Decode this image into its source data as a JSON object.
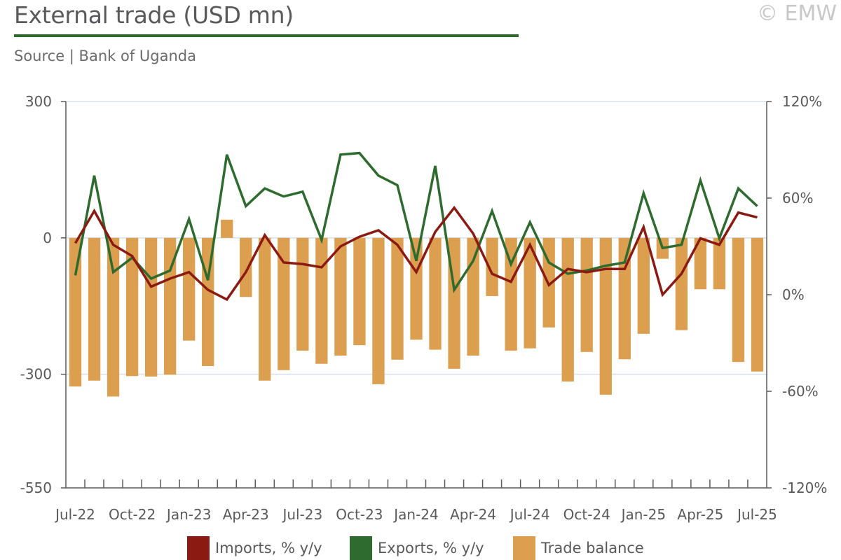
{
  "header": {
    "title": "External trade (USD mn)",
    "copyright": "© EMW",
    "source": "Source | Bank of Uganda"
  },
  "colors": {
    "imports": "#8b1a12",
    "exports": "#2e6b2e",
    "trade_balance": "#dc9e4f",
    "axis": "#5a5a5a",
    "grid": "#d6e0ec"
  },
  "chart_data": {
    "type": "bar",
    "x": [
      "Jul-22",
      "Aug-22",
      "Sep-22",
      "Oct-22",
      "Nov-22",
      "Dec-22",
      "Jan-23",
      "Feb-23",
      "Mar-23",
      "Apr-23",
      "May-23",
      "Jun-23",
      "Jul-23",
      "Aug-23",
      "Sep-23",
      "Oct-23",
      "Nov-23",
      "Dec-23",
      "Jan-24",
      "Feb-24",
      "Mar-24",
      "Apr-24",
      "May-24",
      "Jun-24",
      "Jul-24",
      "Aug-24",
      "Sep-24",
      "Oct-24",
      "Nov-24",
      "Dec-24",
      "Jan-25",
      "Feb-25",
      "Mar-25",
      "Apr-25",
      "May-25",
      "Jun-25",
      "Jul-25"
    ],
    "x_tick_labels": [
      "Jul-22",
      "Oct-22",
      "Jan-23",
      "Apr-23",
      "Jul-23",
      "Oct-23",
      "Jan-24",
      "Apr-24",
      "Jul-24",
      "Oct-24",
      "Jan-25",
      "Apr-25",
      "Jul-25"
    ],
    "y_left": {
      "lim": [
        -550,
        300
      ],
      "ticks": [
        300,
        0,
        -300,
        -550
      ],
      "tick_labels": [
        "300",
        "0",
        "-300",
        "-550"
      ]
    },
    "y_right": {
      "lim": [
        -120,
        120
      ],
      "ticks": [
        120,
        60,
        0,
        -60,
        -120
      ],
      "tick_labels": [
        "120%",
        "60%",
        "0%",
        "-60%",
        "-120%"
      ]
    },
    "grid": true,
    "legend_position": "bottom",
    "series": [
      {
        "name": "Imports, % y/y",
        "type": "line",
        "axis": "right",
        "values": [
          32,
          52,
          31,
          24,
          5,
          10,
          14,
          3,
          -3,
          14,
          37,
          20,
          19,
          17,
          30,
          36,
          40,
          31,
          14,
          39,
          54,
          38,
          13,
          8,
          31,
          6,
          16,
          14,
          16,
          16,
          42,
          0,
          13,
          35,
          31,
          51,
          48
        ]
      },
      {
        "name": "Exports, % y/y",
        "type": "line",
        "axis": "right",
        "values": [
          12,
          74,
          14,
          23,
          10,
          15,
          47,
          9,
          87,
          55,
          66,
          61,
          64,
          34,
          87,
          88,
          74,
          68,
          21,
          80,
          3,
          21,
          52,
          19,
          45,
          20,
          13,
          15,
          18,
          20,
          63,
          29,
          31,
          71,
          35,
          66,
          55
        ]
      },
      {
        "name": "Trade balance",
        "type": "bar",
        "axis": "left",
        "values": [
          -327,
          -314,
          -349,
          -304,
          -305,
          -301,
          -226,
          -282,
          40,
          -130,
          -314,
          -291,
          -248,
          -277,
          -259,
          -236,
          -322,
          -268,
          -224,
          -246,
          -288,
          -259,
          -128,
          -248,
          -243,
          -197,
          -316,
          -251,
          -345,
          -267,
          -211,
          -46,
          -203,
          -113,
          -113,
          -273,
          -294
        ]
      }
    ]
  }
}
